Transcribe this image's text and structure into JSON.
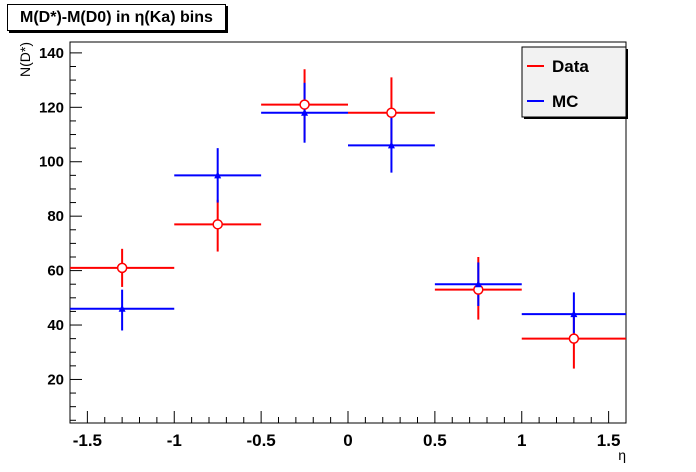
{
  "chart_data": {
    "type": "scatter",
    "title": "M(D*)-M(D0) in η(Ka) bins",
    "xlabel": "η",
    "ylabel": "N(D*)",
    "xlim": [
      -1.6,
      1.6
    ],
    "ylim": [
      4,
      144
    ],
    "xticks": [
      -1.5,
      -1,
      -0.5,
      0,
      0.5,
      1,
      1.5
    ],
    "xtick_labels": [
      "-1.5",
      "-1",
      "-0.5",
      "0",
      "0.5",
      "1",
      "1.5"
    ],
    "yticks": [
      20,
      40,
      60,
      80,
      100,
      120,
      140
    ],
    "ytick_labels": [
      "20",
      "40",
      "60",
      "80",
      "100",
      "120",
      "140"
    ],
    "grid": false,
    "legend_position": "top-right",
    "series": [
      {
        "name": "Data",
        "color": "#ff0000",
        "marker": "open-circle",
        "points": [
          {
            "xlo": -1.6,
            "xhi": -1.0,
            "x": -1.3,
            "y": 61,
            "ylo": 54,
            "yhi": 68
          },
          {
            "xlo": -1.0,
            "xhi": -0.5,
            "x": -0.75,
            "y": 77,
            "ylo": 67,
            "yhi": 86
          },
          {
            "xlo": -0.5,
            "xhi": 0.0,
            "x": -0.25,
            "y": 121,
            "ylo": 108,
            "yhi": 134
          },
          {
            "xlo": 0.0,
            "xhi": 0.5,
            "x": 0.25,
            "y": 118,
            "ylo": 106,
            "yhi": 131
          },
          {
            "xlo": 0.5,
            "xhi": 1.0,
            "x": 0.75,
            "y": 53,
            "ylo": 42,
            "yhi": 65
          },
          {
            "xlo": 1.0,
            "xhi": 1.6,
            "x": 1.3,
            "y": 35,
            "ylo": 24,
            "yhi": 45
          }
        ]
      },
      {
        "name": "MC",
        "color": "#0000ff",
        "marker": "triangle",
        "points": [
          {
            "xlo": -1.6,
            "xhi": -1.0,
            "x": -1.3,
            "y": 46,
            "ylo": 38,
            "yhi": 53
          },
          {
            "xlo": -1.0,
            "xhi": -0.5,
            "x": -0.75,
            "y": 95,
            "ylo": 85,
            "yhi": 105
          },
          {
            "xlo": -0.5,
            "xhi": 0.0,
            "x": -0.25,
            "y": 118,
            "ylo": 107,
            "yhi": 129
          },
          {
            "xlo": 0.0,
            "xhi": 0.5,
            "x": 0.25,
            "y": 106,
            "ylo": 96,
            "yhi": 117
          },
          {
            "xlo": 0.5,
            "xhi": 1.0,
            "x": 0.75,
            "y": 55,
            "ylo": 47,
            "yhi": 63
          },
          {
            "xlo": 1.0,
            "xhi": 1.6,
            "x": 1.3,
            "y": 44,
            "ylo": 37,
            "yhi": 52
          }
        ]
      }
    ]
  }
}
